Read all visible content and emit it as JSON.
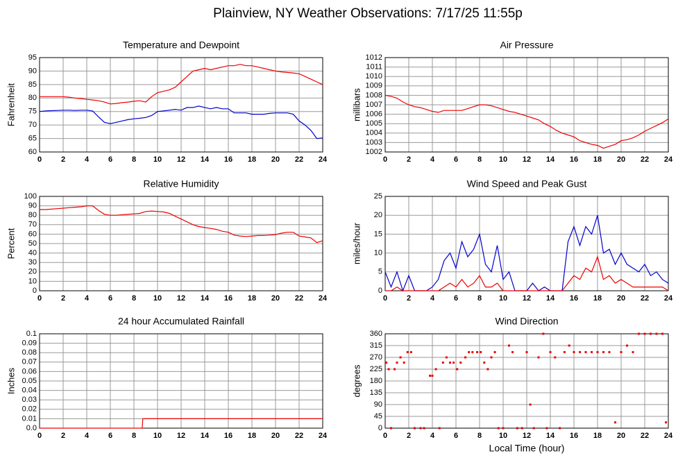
{
  "title": "Plainview, NY Weather Observations: 7/17/25 11:55p",
  "chart_data": [
    {
      "type": "line",
      "title": "Temperature and Dewpoint",
      "ylabel": "Fahrenheit",
      "x": [
        0,
        0.5,
        1,
        1.5,
        2,
        2.5,
        3,
        3.5,
        4,
        4.5,
        5,
        5.5,
        6,
        6.5,
        7,
        7.5,
        8,
        8.5,
        9,
        9.5,
        10,
        10.5,
        11,
        11.5,
        12,
        12.5,
        13,
        13.5,
        14,
        14.5,
        15,
        15.5,
        16,
        16.5,
        17,
        17.5,
        18,
        18.5,
        19,
        19.5,
        20,
        20.5,
        21,
        21.5,
        22,
        22.5,
        23,
        23.5,
        24
      ],
      "series": [
        {
          "color": "#ee0000",
          "values": [
            80.5,
            80.5,
            80.5,
            80.5,
            80.5,
            80.3,
            80,
            79.8,
            79.5,
            79.3,
            79,
            78.5,
            77.8,
            78,
            78.3,
            78.5,
            78.8,
            79,
            78.5,
            80.5,
            82,
            82.5,
            83,
            84,
            86,
            88,
            90,
            90.5,
            91,
            90.5,
            91,
            91.5,
            92,
            92,
            92.5,
            92,
            92,
            91.5,
            91,
            90.5,
            90,
            89.7,
            89.5,
            89.3,
            89,
            88,
            87,
            86,
            85
          ]
        },
        {
          "color": "#0000cc",
          "values": [
            75,
            75.2,
            75.3,
            75.4,
            75.5,
            75.5,
            75.4,
            75.5,
            75.5,
            75.2,
            73,
            71,
            70.5,
            71,
            71.5,
            72,
            72.3,
            72.5,
            72.8,
            73.5,
            75,
            75.2,
            75.5,
            75.8,
            75.5,
            76.5,
            76.5,
            77,
            76.5,
            76,
            76.5,
            76,
            76,
            74.5,
            74.5,
            74.5,
            74,
            74,
            74,
            74.3,
            74.5,
            74.5,
            74.5,
            74,
            71.5,
            70,
            68,
            65,
            65.2
          ]
        }
      ],
      "xlim": [
        0,
        24
      ],
      "xticks": [
        0,
        2,
        4,
        6,
        8,
        10,
        12,
        14,
        16,
        18,
        20,
        22,
        24
      ],
      "ylim": [
        60,
        95
      ],
      "yticks": [
        60,
        65,
        70,
        75,
        80,
        85,
        90,
        95
      ],
      "grid": true
    },
    {
      "type": "line",
      "title": "Air Pressure",
      "ylabel": "millibars",
      "x": [
        0,
        0.5,
        1,
        1.5,
        2,
        2.5,
        3,
        3.5,
        4,
        4.5,
        5,
        5.5,
        6,
        6.5,
        7,
        7.5,
        8,
        8.5,
        9,
        9.5,
        10,
        10.5,
        11,
        11.5,
        12,
        12.5,
        13,
        13.5,
        14,
        14.5,
        15,
        15.5,
        16,
        16.5,
        17,
        17.5,
        18,
        18.5,
        19,
        19.5,
        20,
        20.5,
        21,
        21.5,
        22,
        22.5,
        23,
        23.5,
        24
      ],
      "series": [
        {
          "color": "#ee0000",
          "values": [
            1008,
            1007.9,
            1007.7,
            1007.3,
            1007,
            1006.8,
            1006.7,
            1006.5,
            1006.3,
            1006.2,
            1006.4,
            1006.4,
            1006.4,
            1006.4,
            1006.6,
            1006.8,
            1007,
            1007,
            1006.9,
            1006.7,
            1006.5,
            1006.3,
            1006.2,
            1006,
            1005.8,
            1005.6,
            1005.4,
            1005,
            1004.7,
            1004.3,
            1004,
            1003.8,
            1003.6,
            1003.2,
            1003,
            1002.8,
            1002.7,
            1002.4,
            1002.6,
            1002.8,
            1003.2,
            1003.3,
            1003.5,
            1003.8,
            1004.2,
            1004.5,
            1004.8,
            1005.1,
            1005.5
          ]
        }
      ],
      "xlim": [
        0,
        24
      ],
      "xticks": [
        0,
        2,
        4,
        6,
        8,
        10,
        12,
        14,
        16,
        18,
        20,
        22,
        24
      ],
      "ylim": [
        1002,
        1012
      ],
      "yticks": [
        1002,
        1003,
        1004,
        1005,
        1006,
        1007,
        1008,
        1009,
        1010,
        1011,
        1012
      ],
      "grid": true
    },
    {
      "type": "line",
      "title": "Relative Humidity",
      "ylabel": "Percent",
      "x": [
        0,
        0.5,
        1,
        1.5,
        2,
        2.5,
        3,
        3.5,
        4,
        4.5,
        5,
        5.5,
        6,
        6.5,
        7,
        7.5,
        8,
        8.5,
        9,
        9.5,
        10,
        10.5,
        11,
        11.5,
        12,
        12.5,
        13,
        13.5,
        14,
        14.5,
        15,
        15.5,
        16,
        16.5,
        17,
        17.5,
        18,
        18.5,
        19,
        19.5,
        20,
        20.5,
        21,
        21.5,
        22,
        22.5,
        23,
        23.5,
        24
      ],
      "series": [
        {
          "color": "#ee0000",
          "values": [
            86,
            86,
            86.5,
            87,
            87.5,
            88,
            88.5,
            89,
            90,
            90,
            85,
            81,
            80,
            80,
            80.5,
            81,
            81.5,
            82,
            84,
            84.5,
            84,
            83.5,
            82,
            79,
            76,
            73,
            70,
            68,
            67,
            66,
            65,
            63,
            62,
            59,
            58,
            57.5,
            58,
            58.5,
            58.5,
            59,
            59.5,
            61,
            62,
            62,
            58,
            57,
            56,
            51,
            53
          ]
        }
      ],
      "xlim": [
        0,
        24
      ],
      "xticks": [
        0,
        2,
        4,
        6,
        8,
        10,
        12,
        14,
        16,
        18,
        20,
        22,
        24
      ],
      "ylim": [
        0,
        100
      ],
      "yticks": [
        0,
        10,
        20,
        30,
        40,
        50,
        60,
        70,
        80,
        90,
        100
      ],
      "grid": true
    },
    {
      "type": "line",
      "title": "Wind Speed and Peak Gust",
      "ylabel": "miles/hour",
      "x": [
        0,
        0.5,
        1,
        1.5,
        2,
        2.5,
        3,
        3.5,
        4,
        4.5,
        5,
        5.5,
        6,
        6.5,
        7,
        7.5,
        8,
        8.5,
        9,
        9.5,
        10,
        10.5,
        11,
        11.5,
        12,
        12.5,
        13,
        13.5,
        14,
        14.5,
        15,
        15.5,
        16,
        16.5,
        17,
        17.5,
        18,
        18.5,
        19,
        19.5,
        20,
        20.5,
        21,
        21.5,
        22,
        22.5,
        23,
        23.5,
        24
      ],
      "series": [
        {
          "color": "#0000cc",
          "values": [
            5,
            1,
            5,
            0,
            4,
            0,
            0,
            0,
            1,
            3,
            8,
            10,
            6,
            13,
            9,
            11,
            15,
            7,
            5,
            12,
            3,
            5,
            0,
            0,
            0,
            2,
            0,
            1,
            0,
            0,
            0,
            13,
            17,
            12,
            17,
            15,
            20,
            10,
            11,
            7,
            10,
            7,
            6,
            5,
            7,
            4,
            5,
            3,
            2
          ]
        },
        {
          "color": "#ee0000",
          "values": [
            0,
            0,
            1,
            0,
            0,
            0,
            0,
            0,
            0,
            0,
            1,
            2,
            1,
            3,
            1,
            2,
            4,
            1,
            1,
            2,
            0,
            0,
            0,
            0,
            0,
            0,
            0,
            0,
            0,
            0,
            0,
            2,
            4,
            3,
            6,
            5,
            9,
            3,
            4,
            2,
            3,
            2,
            1,
            1,
            1,
            1,
            1,
            1,
            0
          ]
        }
      ],
      "xlim": [
        0,
        24
      ],
      "xticks": [
        0,
        2,
        4,
        6,
        8,
        10,
        12,
        14,
        16,
        18,
        20,
        22,
        24
      ],
      "ylim": [
        0,
        25
      ],
      "yticks": [
        0,
        5,
        10,
        15,
        20,
        25
      ],
      "grid": true
    },
    {
      "type": "line",
      "title": "24 hour Accumulated Rainfall",
      "ylabel": "Inches",
      "x": [
        0,
        8.7,
        8.75,
        24
      ],
      "series": [
        {
          "color": "#ee0000",
          "values": [
            0,
            0,
            0.01,
            0.01
          ]
        }
      ],
      "xlim": [
        0,
        24
      ],
      "xticks": [
        0,
        2,
        4,
        6,
        8,
        10,
        12,
        14,
        16,
        18,
        20,
        22,
        24
      ],
      "ylim": [
        0,
        0.1
      ],
      "yticks": [
        {
          "value": 0,
          "label": "0.0"
        },
        0.01,
        0.02,
        0.03,
        0.04,
        0.05,
        0.06,
        0.07,
        0.08,
        0.09,
        0.1
      ],
      "grid": true
    },
    {
      "type": "scatter",
      "title": "Wind Direction",
      "ylabel": "degrees",
      "xlabel": "Local Time (hour)",
      "x": [
        0.1,
        0.3,
        0.5,
        0.8,
        1,
        1.3,
        1.6,
        1.9,
        2.2,
        2.5,
        3,
        3.3,
        3.8,
        4,
        4.3,
        4.6,
        4.9,
        5.2,
        5.5,
        5.8,
        6.1,
        6.4,
        6.8,
        7.1,
        7.4,
        7.8,
        8.1,
        8.4,
        8.7,
        9,
        9.3,
        9.6,
        10,
        10.5,
        10.8,
        11.2,
        11.6,
        12,
        12.3,
        12.6,
        13,
        13.4,
        13.7,
        14,
        14.4,
        14.8,
        15.2,
        15.6,
        16,
        16.5,
        17,
        17.5,
        18,
        18.5,
        19,
        19.5,
        20,
        20.5,
        21,
        21.5,
        22,
        22.5,
        23,
        23.5,
        23.8
      ],
      "values": [
        250,
        225,
        0,
        225,
        250,
        270,
        250,
        290,
        290,
        0,
        0,
        0,
        200,
        200,
        225,
        0,
        250,
        270,
        250,
        250,
        225,
        250,
        270,
        290,
        290,
        290,
        290,
        250,
        225,
        270,
        290,
        0,
        0,
        315,
        290,
        0,
        0,
        290,
        90,
        0,
        270,
        360,
        0,
        290,
        270,
        0,
        290,
        315,
        290,
        290,
        290,
        290,
        290,
        290,
        290,
        22,
        290,
        315,
        290,
        360,
        360,
        360,
        360,
        360,
        22
      ],
      "color": "#ee0000",
      "xlim": [
        0,
        24
      ],
      "xticks": [
        0,
        2,
        4,
        6,
        8,
        10,
        12,
        14,
        16,
        18,
        20,
        22,
        24
      ],
      "ylim": [
        0,
        360
      ],
      "yticks": [
        0,
        45,
        90,
        135,
        180,
        225,
        270,
        315,
        360
      ],
      "grid": true
    }
  ]
}
